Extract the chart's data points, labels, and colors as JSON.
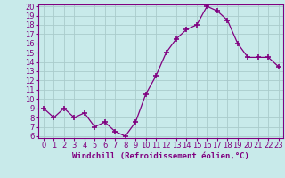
{
  "x": [
    0,
    1,
    2,
    3,
    4,
    5,
    6,
    7,
    8,
    9,
    10,
    11,
    12,
    13,
    14,
    15,
    16,
    17,
    18,
    19,
    20,
    21,
    22,
    23
  ],
  "y": [
    9,
    8,
    9,
    8,
    8.5,
    7,
    7.5,
    6.5,
    6,
    7.5,
    10.5,
    12.5,
    15,
    16.5,
    17.5,
    18,
    20,
    19.5,
    18.5,
    16,
    14.5,
    14.5,
    14.5,
    13.5
  ],
  "line_color": "#800080",
  "marker": "+",
  "marker_size": 4,
  "marker_lw": 1.2,
  "bg_color": "#c8eaea",
  "grid_color": "#aacccc",
  "xlabel": "Windchill (Refroidissement éolien,°C)",
  "xlabel_fontsize": 6.5,
  "tick_fontsize": 6.0,
  "ylim": [
    6,
    20
  ],
  "yticks": [
    6,
    7,
    8,
    9,
    10,
    11,
    12,
    13,
    14,
    15,
    16,
    17,
    18,
    19,
    20
  ],
  "xticks": [
    0,
    1,
    2,
    3,
    4,
    5,
    6,
    7,
    8,
    9,
    10,
    11,
    12,
    13,
    14,
    15,
    16,
    17,
    18,
    19,
    20,
    21,
    22,
    23
  ],
  "xlim": [
    -0.5,
    23.5
  ]
}
